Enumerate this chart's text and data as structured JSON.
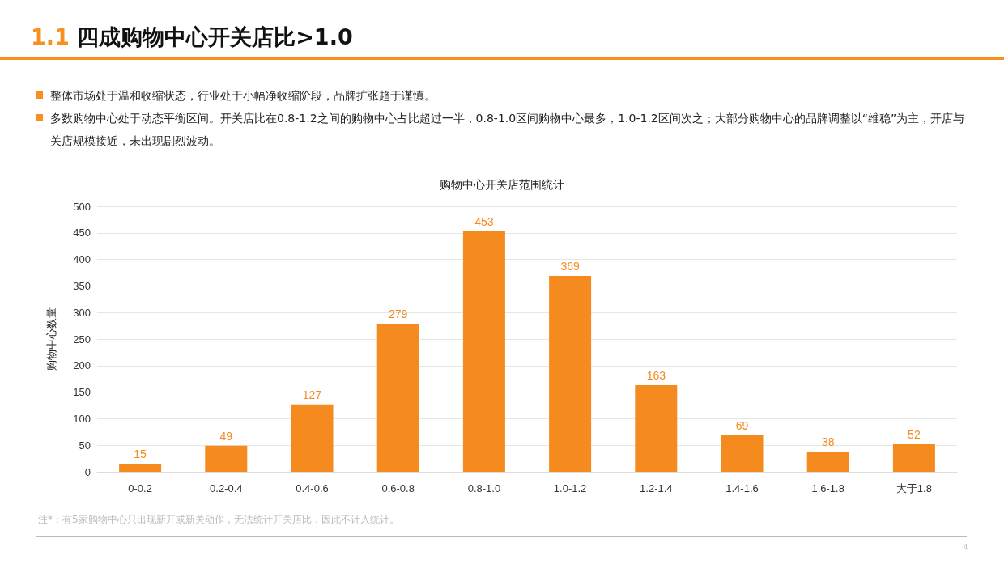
{
  "chart_data": {
    "type": "bar",
    "title": "1.1 四成购物中心开关店比>1.0",
    "subtitle": "购物中心开关店范围统计",
    "ylabel": "购物中心数量",
    "categories": [
      "0-0.2",
      "0.2-0.4",
      "0.4-0.6",
      "0.6-0.8",
      "0.8-1.0",
      "1.0-1.2",
      "1.2-1.4",
      "1.4-1.6",
      "1.6-1.8",
      "大于1.8"
    ],
    "values": [
      15,
      49,
      127,
      279,
      453,
      369,
      163,
      69,
      38,
      52
    ],
    "color": "#f58a1f",
    "ylim": [
      0,
      500
    ],
    "yticks": [
      0,
      50,
      100,
      150,
      200,
      250,
      300,
      350,
      400,
      450,
      500
    ],
    "grid": "y",
    "data_labels": true,
    "annotations": [
      "整体市场处于温和收缩状态，行业处于小幅净收缩阶段，品牌扩张趋于谨慎。",
      "多数购物中心处于动态平衡区间。开关店比在0.8-1.2之间的购物中心占比超过一半，0.8-1.0区间购物中心最多，1.0-1.2区间次之；大部分购物中心的品牌调整以“维稳”为主，开店与关店规模接近，未出现剧烈波动。",
      "注*：有5家购物中心只出现新开或新关动作，无法统计开关店比，因此不计入统计。",
      "4"
    ]
  }
}
